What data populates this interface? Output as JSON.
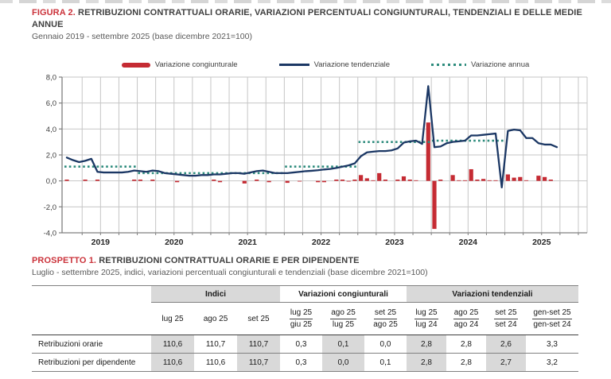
{
  "figure": {
    "label": "FIGURA 2.",
    "title": "RETRIBUZIONI CONTRATTUALI ORARIE, VARIAZIONI PERCENTUALI CONGIUNTURALI, TENDENZIALI E DELLE MEDIE ANNUE",
    "subtitle": "Gennaio 2019 - settembre 2025 (base dicembre 2021=100)"
  },
  "legend": [
    {
      "label": "Variazione congiunturale",
      "swatch": "bar",
      "color": "#c52b33"
    },
    {
      "label": "Variazione tendenziale",
      "swatch": "line",
      "color": "#1b3764"
    },
    {
      "label": "Variazione annua",
      "swatch": "dotted",
      "color": "#2e8c7d"
    }
  ],
  "chart_data": {
    "type": "bar",
    "x_start": "2019-01",
    "x_end": "2025-09",
    "ylim": [
      -4,
      8
    ],
    "ytick_labels": [
      "8,0",
      "6,0",
      "4,0",
      "2,0",
      "0,0",
      "-2,0",
      "-4,0"
    ],
    "year_labels": [
      "2019",
      "2020",
      "2021",
      "2022",
      "2023",
      "2024",
      "2025"
    ],
    "grid": "horizontal every 2.0, vertical quarterly",
    "legend_position": "top",
    "series": [
      {
        "name": "Variazione congiunturale",
        "type": "bar",
        "color": "#c52b33",
        "values": [
          0.1,
          0,
          0,
          0.1,
          0,
          0.1,
          0,
          0,
          0,
          0,
          0,
          0.1,
          0.1,
          0,
          0.1,
          0,
          0,
          0,
          -0.1,
          0,
          0,
          0,
          0,
          0,
          0.1,
          -0.1,
          0,
          0,
          0,
          -0.2,
          0,
          0.1,
          0,
          -0.1,
          0,
          0,
          -0.15,
          0,
          -0.05,
          0,
          0,
          -0.1,
          -0.1,
          0,
          0.1,
          0.1,
          -0.05,
          0.1,
          0.45,
          0.2,
          0.05,
          0.6,
          0.1,
          0,
          0.1,
          0.35,
          0.1,
          0.05,
          0,
          4.5,
          -3.7,
          0.1,
          0,
          0.45,
          0.05,
          0.05,
          0.9,
          0.1,
          0.15,
          0.05,
          0.05,
          0,
          0.5,
          0.25,
          0.3,
          0.05,
          0,
          0.4,
          0.3,
          0.1,
          0
        ]
      },
      {
        "name": "Variazione tendenziale",
        "type": "line",
        "color": "#1b3764",
        "values": [
          1.8,
          1.6,
          1.45,
          1.55,
          1.7,
          0.7,
          0.65,
          0.65,
          0.65,
          0.65,
          0.7,
          0.8,
          0.75,
          0.7,
          0.8,
          0.75,
          0.6,
          0.55,
          0.5,
          0.45,
          0.4,
          0.4,
          0.45,
          0.45,
          0.5,
          0.5,
          0.55,
          0.6,
          0.6,
          0.55,
          0.65,
          0.75,
          0.8,
          0.7,
          0.6,
          0.6,
          0.6,
          0.65,
          0.7,
          0.75,
          0.78,
          0.82,
          0.88,
          0.92,
          1.0,
          1.1,
          1.2,
          1.35,
          1.9,
          2.2,
          2.25,
          2.3,
          2.3,
          2.35,
          2.5,
          2.95,
          3.05,
          3.1,
          2.85,
          7.3,
          2.6,
          2.65,
          2.9,
          3.0,
          3.05,
          3.1,
          3.5,
          3.5,
          3.55,
          3.6,
          3.65,
          -0.5,
          3.85,
          3.95,
          3.9,
          3.3,
          3.3,
          2.9,
          2.8,
          2.8,
          2.6
        ]
      },
      {
        "name": "Variazione annua",
        "type": "step-dotted",
        "color": "#2e8c7d",
        "values_by_year": {
          "2019": 1.1,
          "2020": 0.6,
          "2021": 0.6,
          "2022": 1.1,
          "2023": 3.0,
          "2024": 3.1
        }
      }
    ]
  },
  "prospetto": {
    "label": "PROSPETTO 1.",
    "title": "RETRIBUZIONI CONTRATTUALI ORARIE E PER DIPENDENTE",
    "subtitle": "Luglio - settembre 2025, indici, variazioni percentuali congiunturali e tendenziali (base dicembre 2021=100)",
    "table": {
      "groups": [
        {
          "label": "Indici"
        },
        {
          "label": "Variazioni congiunturali"
        },
        {
          "label": "Variazioni tendenziali"
        }
      ],
      "indici_headers": [
        "lug 25",
        "ago 25",
        "set 25"
      ],
      "cong_headers": [
        {
          "top": "lug 25",
          "bottom": "giu 25"
        },
        {
          "top": "ago 25",
          "bottom": "lug 25"
        },
        {
          "top": "set 25",
          "bottom": "ago 25"
        }
      ],
      "tend_headers": [
        {
          "top": "lug 25",
          "bottom": "lug 24"
        },
        {
          "top": "ago 25",
          "bottom": "ago 24"
        },
        {
          "top": "set 25",
          "bottom": "set 24"
        },
        {
          "top": "gen-set 25",
          "bottom": "gen-set 24"
        }
      ],
      "rows": [
        {
          "label": "Retribuzioni orarie",
          "values": [
            "110,6",
            "110,7",
            "110,7",
            "0,3",
            "0,1",
            "0,0",
            "2,8",
            "2,8",
            "2,6",
            "3,3"
          ]
        },
        {
          "label": "Retribuzioni per dipendente",
          "values": [
            "110,6",
            "110,6",
            "110,7",
            "0,3",
            "0,0",
            "0,1",
            "2,8",
            "2,8",
            "2,7",
            "3,2"
          ]
        }
      ]
    }
  },
  "colors": {
    "bar_red": "#c52b33",
    "line_navy": "#1b3764",
    "dotted_teal": "#2e8c7d",
    "title_red": "#cb333b",
    "grid_gray": "#c6c6c6",
    "table_shade": "#d9d9d9"
  }
}
